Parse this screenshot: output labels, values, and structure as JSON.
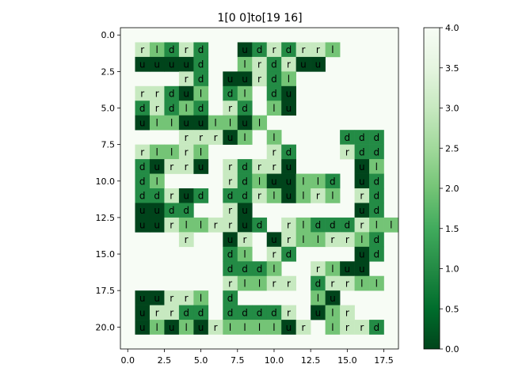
{
  "chart_data": {
    "type": "heatmap",
    "title": "1[0 0]to[19 16]",
    "xlabel": "",
    "ylabel": "",
    "xlim": [
      -0.5,
      18.5
    ],
    "ylim": [
      21.5,
      -0.5
    ],
    "x_ticks": [
      0.0,
      2.5,
      5.0,
      7.5,
      10.0,
      12.5,
      15.0,
      17.5
    ],
    "x_tick_labels": [
      "0.0",
      "2.5",
      "5.0",
      "7.5",
      "10.0",
      "12.5",
      "15.0",
      "17.5"
    ],
    "y_ticks": [
      0.0,
      2.5,
      5.0,
      7.5,
      10.0,
      12.5,
      15.0,
      17.5,
      20.0
    ],
    "y_tick_labels": [
      "0.0",
      "2.5",
      "5.0",
      "7.5",
      "10.0",
      "12.5",
      "15.0",
      "17.5",
      "20.0"
    ],
    "colorbar": {
      "vmin": 0.0,
      "vmax": 4.0,
      "ticks": [
        0.0,
        0.5,
        1.0,
        1.5,
        2.0,
        2.5,
        3.0,
        3.5,
        4.0
      ],
      "tick_labels": [
        "0.0",
        "0.5",
        "1.0",
        "1.5",
        "2.0",
        "2.5",
        "3.0",
        "3.5",
        "4.0"
      ],
      "colormap": "Greens_r",
      "color_stops": [
        "#00441b",
        "#006d2c",
        "#238b45",
        "#41ab5d",
        "#74c476",
        "#a1d99b",
        "#c7e9c0",
        "#e5f5e0",
        "#f7fcf5"
      ]
    },
    "background_value": 4,
    "letter_values": {
      "u": 0,
      "d": 1,
      "l": 2,
      "r": 3
    },
    "grid": false,
    "rows": [
      "..................",
      ".rldrd..udrdrrl...",
      ".uuuud..lrdruu....",
      "....rd.uurdl......",
      ".rrdul.dl.du......",
      ".drdld.rd.lu......",
      ".ulluullul........",
      "....rrrul.l....ddd",
      ".rllrl....rd...rdd",
      ".durru.rdrru....ul",
      ".dl....rdluulld.ud",
      ".ddrud.ddrlulrl.rd",
      ".uudd..ru.......ud",
      ".uurllrrud.rldddrll",
      "....r..ur.urllrrld",
      ".......dl.rd....ud",
      ".......dddl..rluu.",
      ".......rllrr.drrll",
      ".uurrl.d.....lu...",
      ".urrdd.ddddr.ulr..",
      ".ululurllllur.lrrd",
      ".................."
    ]
  }
}
